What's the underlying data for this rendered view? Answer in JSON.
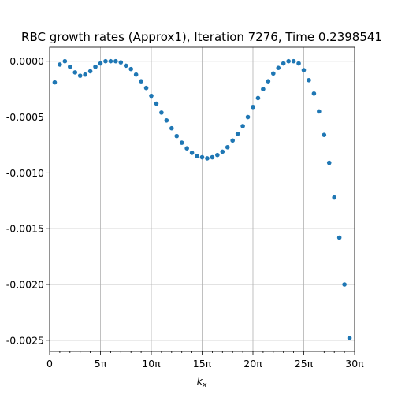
{
  "chart_data": {
    "type": "scatter",
    "title": "RBC growth rates (Approx1), Iteration 7276, Time 0.2398541",
    "xlabel": "k_x",
    "ylabel": "",
    "xlim": [
      0,
      30
    ],
    "ylim": [
      -0.0026,
      0.000125
    ],
    "grid": true,
    "x_ticks": [
      {
        "value": 0,
        "label": "0"
      },
      {
        "value": 5,
        "label": "5π"
      },
      {
        "value": 10,
        "label": "10π"
      },
      {
        "value": 15,
        "label": "15π"
      },
      {
        "value": 20,
        "label": "20π"
      },
      {
        "value": 25,
        "label": "25π"
      },
      {
        "value": 30,
        "label": "30π"
      }
    ],
    "y_ticks": [
      {
        "value": 0.0,
        "label": "0.0000"
      },
      {
        "value": -0.0005,
        "label": "-0.0005"
      },
      {
        "value": -0.001,
        "label": "-0.0010"
      },
      {
        "value": -0.0015,
        "label": "-0.0015"
      },
      {
        "value": -0.002,
        "label": "-0.0020"
      },
      {
        "value": -0.0025,
        "label": "-0.0025"
      }
    ],
    "marker_color": "#1f77b4",
    "x_unit": "π",
    "x": [
      0.5,
      1.0,
      1.5,
      2.0,
      2.5,
      3.0,
      3.5,
      4.0,
      4.5,
      5.0,
      5.5,
      6.0,
      6.5,
      7.0,
      7.5,
      8.0,
      8.5,
      9.0,
      9.5,
      10.0,
      10.5,
      11.0,
      11.5,
      12.0,
      12.5,
      13.0,
      13.5,
      14.0,
      14.5,
      15.0,
      15.5,
      16.0,
      16.5,
      17.0,
      17.5,
      18.0,
      18.5,
      19.0,
      19.5,
      20.0,
      20.5,
      21.0,
      21.5,
      22.0,
      22.5,
      23.0,
      23.5,
      24.0,
      24.5,
      25.0,
      25.5,
      26.0,
      26.5,
      27.0,
      27.5,
      28.0,
      28.5,
      29.0,
      29.5
    ],
    "y": [
      -0.00019,
      -3e-05,
      0.0,
      -5e-05,
      -0.0001,
      -0.00013,
      -0.00012,
      -9e-05,
      -5e-05,
      -2e-05,
      0.0,
      0.0,
      0.0,
      -1e-05,
      -4e-05,
      -7e-05,
      -0.00012,
      -0.00018,
      -0.00024,
      -0.00031,
      -0.00038,
      -0.00046,
      -0.00053,
      -0.0006,
      -0.00067,
      -0.00073,
      -0.00078,
      -0.00082,
      -0.00085,
      -0.00086,
      -0.00087,
      -0.00086,
      -0.00084,
      -0.00081,
      -0.00077,
      -0.00071,
      -0.00065,
      -0.00058,
      -0.0005,
      -0.00041,
      -0.00033,
      -0.00025,
      -0.00018,
      -0.00011,
      -6e-05,
      -2e-05,
      0.0,
      0.0,
      -2e-05,
      -8e-05,
      -0.00017,
      -0.00029,
      -0.00045,
      -0.00066,
      -0.00091,
      -0.00122,
      -0.00158,
      -0.002,
      -0.00248
    ]
  }
}
